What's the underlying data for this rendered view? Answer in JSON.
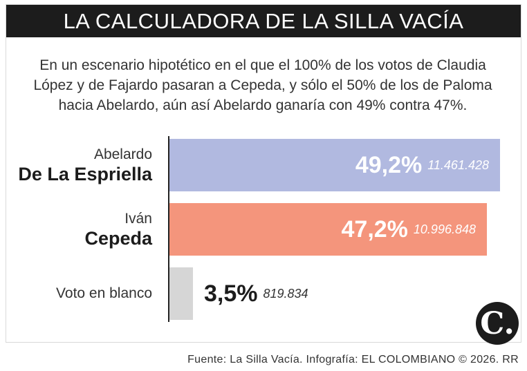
{
  "header": {
    "title": "LA CALCULADORA DE LA SILLA VACÍA",
    "subtitle_lines": [
      "En un escenario hipotético en el que el 100% de los votos de Claudia",
      "López y de Fajardo pasaran a Cepeda, y sólo el 50% de los de Paloma",
      "hacia Abelardo, aún así Abelardo ganaría con 49% contra 47%."
    ]
  },
  "chart_data": {
    "type": "bar",
    "orientation": "horizontal",
    "title": "LA CALCULADORA DE LA SILLA VACÍA",
    "categories": [
      "Abelardo De La Espriella",
      "Iván Cepeda",
      "Voto en blanco"
    ],
    "values": [
      49.2,
      47.2,
      3.5
    ],
    "series": [
      {
        "values": [
          49.2,
          47.2,
          3.5
        ],
        "labels": [
          "49,2%",
          "47,2%",
          "3,5%"
        ],
        "votes": [
          "11.461.428",
          "10.996.848",
          "819.834"
        ]
      }
    ],
    "bars": [
      {
        "first": "Abelardo",
        "last": "De La Espriella",
        "value": 49.2,
        "pct_label": "49,2%",
        "votes": "11.461.428",
        "color": "#b1b9e0"
      },
      {
        "first": "Iván",
        "last": "Cepeda",
        "value": 47.2,
        "pct_label": "47,2%",
        "votes": "10.996.848",
        "color": "#f4957c"
      },
      {
        "first": "",
        "last": "",
        "single": "Voto en blanco",
        "value": 3.5,
        "pct_label": "3,5%",
        "votes": "819.834",
        "color": "#d6d6d6"
      }
    ],
    "xlim": [
      0,
      49.2
    ],
    "grid": false,
    "legend": "none"
  },
  "colors": {
    "header_bg": "#1c1c1c",
    "text": "#222222"
  },
  "footer": {
    "logo_letter": "C.",
    "source": "Fuente: La Silla Vacía. Infografía: EL COLOMBIANO © 2026. RR"
  }
}
